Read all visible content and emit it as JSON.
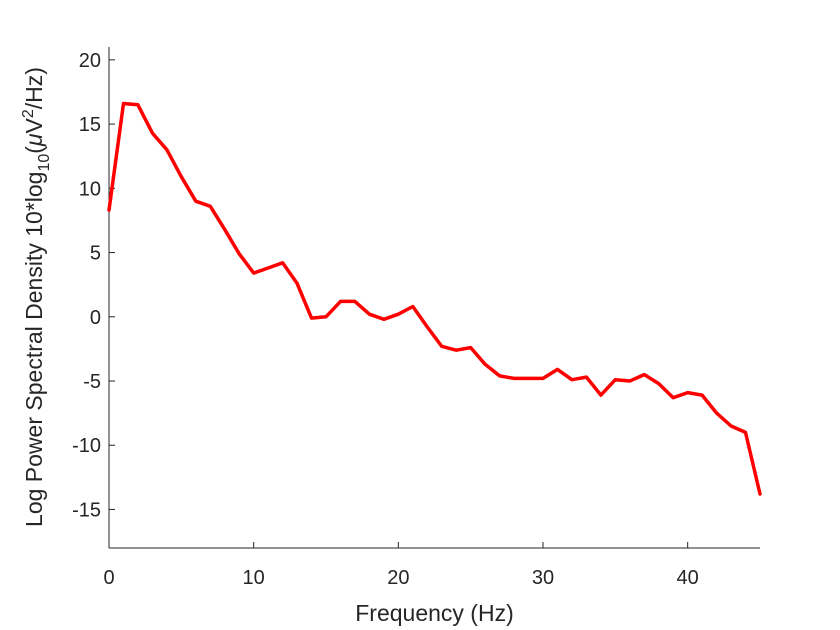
{
  "chart_data": {
    "type": "line",
    "title": "",
    "xlabel": "Frequency (Hz)",
    "ylabel": {
      "prefix": "Log Power Spectral Density 10*log",
      "subscript": "10",
      "open": "(",
      "mu": "μ",
      "unit_v": "V",
      "superscript": "2",
      "suffix": "/Hz)"
    },
    "xlim": [
      0,
      45
    ],
    "ylim": [
      -18,
      21
    ],
    "xticks": [
      "0",
      "10",
      "20",
      "30",
      "40"
    ],
    "yticks": [
      "-15",
      "-10",
      "-5",
      "0",
      "5",
      "10",
      "15",
      "20"
    ],
    "xtick_values": [
      0,
      10,
      20,
      30,
      40
    ],
    "ytick_values": [
      -15,
      -10,
      -5,
      0,
      5,
      10,
      15,
      20
    ],
    "grid": false,
    "series": [
      {
        "color": "#ff0000",
        "x": [
          0,
          1,
          2,
          3,
          4,
          5,
          6,
          7,
          8,
          9,
          10,
          11,
          12,
          13,
          14,
          15,
          16,
          17,
          18,
          19,
          20,
          21,
          22,
          23,
          24,
          25,
          26,
          27,
          28,
          29,
          30,
          31,
          32,
          33,
          34,
          35,
          36,
          37,
          38,
          39,
          40,
          41,
          42,
          43,
          44,
          45
        ],
        "y": [
          8.3,
          16.6,
          16.5,
          14.3,
          13.0,
          10.9,
          9.0,
          8.6,
          6.8,
          4.9,
          3.4,
          3.8,
          4.2,
          2.6,
          -0.1,
          0.0,
          1.2,
          1.2,
          0.2,
          -0.2,
          0.2,
          0.8,
          -0.8,
          -2.3,
          -2.6,
          -2.4,
          -3.7,
          -4.6,
          -4.8,
          -4.8,
          -4.8,
          -4.1,
          -4.9,
          -4.7,
          -6.1,
          -4.9,
          -5.0,
          -4.5,
          -5.2,
          -6.3,
          -5.9,
          -6.1,
          -7.5,
          -8.5,
          -9.0,
          -13.8
        ]
      }
    ]
  }
}
